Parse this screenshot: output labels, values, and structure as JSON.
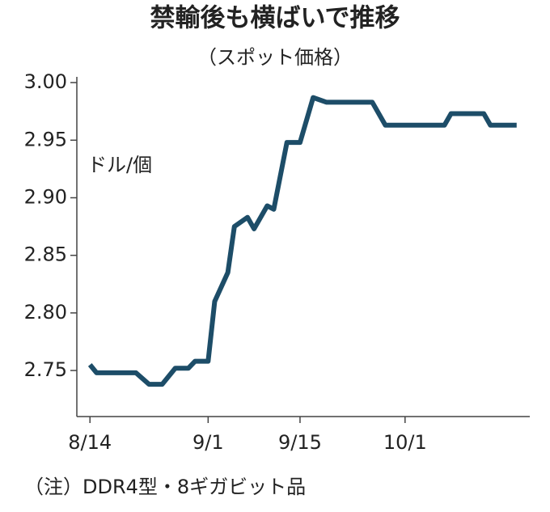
{
  "chart_data": {
    "type": "line",
    "title": "禁輸後も横ばいで推移",
    "subtitle": "（スポット価格）",
    "unit_label": "ドル/個",
    "note": "（注）DDR4型・8ギガビット品",
    "x": [
      "8/14",
      "8/15",
      "8/21",
      "8/23",
      "8/25",
      "8/27",
      "8/29",
      "8/30",
      "9/1",
      "9/2",
      "9/4",
      "9/5",
      "9/7",
      "9/8",
      "9/10",
      "9/11",
      "9/13",
      "9/15",
      "9/17",
      "9/19",
      "9/26",
      "9/28",
      "10/7",
      "10/8",
      "10/13",
      "10/14",
      "10/18"
    ],
    "series": [
      {
        "name": "DDR4",
        "color": "#1d4d68",
        "values": [
          2.755,
          2.748,
          2.748,
          2.738,
          2.738,
          2.752,
          2.752,
          2.758,
          2.758,
          2.81,
          2.835,
          2.875,
          2.883,
          2.873,
          2.893,
          2.89,
          2.948,
          2.948,
          2.987,
          2.983,
          2.983,
          2.963,
          2.963,
          2.973,
          2.973,
          2.963,
          2.963
        ]
      }
    ],
    "xlim": [
      "8/12",
      "10/20"
    ],
    "xticks": [
      "8/14",
      "9/1",
      "9/15",
      "10/1"
    ],
    "ylim": [
      2.71,
      3.005
    ],
    "yticks": [
      {
        "value": 2.75,
        "label": "2.75"
      },
      {
        "value": 2.8,
        "label": "2.80"
      },
      {
        "value": 2.85,
        "label": "2.85"
      },
      {
        "value": 2.9,
        "label": "2.90"
      },
      {
        "value": 2.95,
        "label": "2.95"
      },
      {
        "value": 3.0,
        "label": "3.00"
      }
    ]
  }
}
